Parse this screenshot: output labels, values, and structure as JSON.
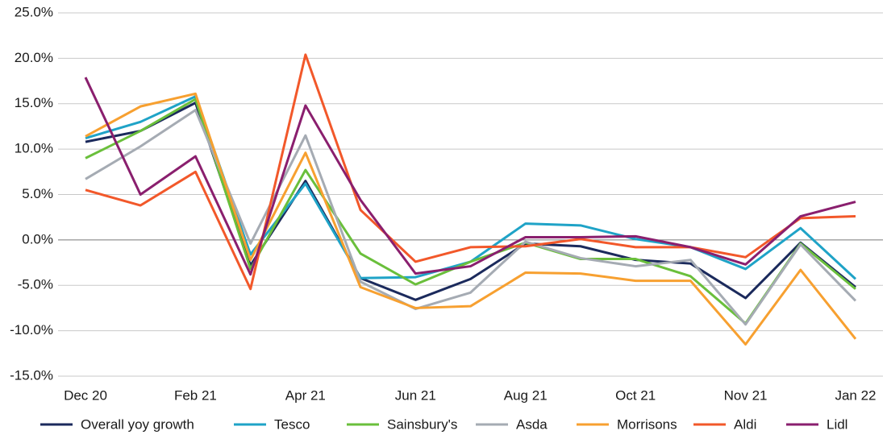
{
  "chart_data": {
    "type": "line",
    "categories": [
      "Dec 20",
      null,
      "Feb 21",
      null,
      "Apr 21",
      null,
      "Jun 21",
      null,
      "Aug 21",
      null,
      "Oct 21",
      null,
      "Nov 21",
      null,
      "Jan 22"
    ],
    "series": [
      {
        "name": "Overall yoy growth",
        "color": "#1b2a5c",
        "values": [
          10.8,
          12.0,
          15.1,
          -2.8,
          6.5,
          -4.2,
          -6.6,
          -4.3,
          -0.4,
          -0.7,
          -2.2,
          -2.6,
          -6.4,
          -0.3,
          -5.2
        ]
      },
      {
        "name": "Tesco",
        "color": "#1fa3c7",
        "values": [
          11.2,
          13.0,
          15.8,
          -1.6,
          6.2,
          -4.2,
          -4.1,
          -2.4,
          1.8,
          1.6,
          0.1,
          -0.8,
          -3.2,
          1.3,
          -4.3
        ]
      },
      {
        "name": "Sainsbury's",
        "color": "#6abf3b",
        "values": [
          9.0,
          12.0,
          15.5,
          -3.2,
          7.7,
          -1.5,
          -4.9,
          -2.4,
          -0.3,
          -2.1,
          -2.1,
          -4.0,
          -9.2,
          -0.4,
          -5.4
        ]
      },
      {
        "name": "Asda",
        "color": "#a5abb3",
        "values": [
          6.7,
          10.3,
          14.3,
          -0.4,
          11.5,
          -4.6,
          -7.6,
          -5.8,
          -0.2,
          -2.0,
          -2.9,
          -2.2,
          -9.3,
          -0.5,
          -6.7
        ]
      },
      {
        "name": "Morrisons",
        "color": "#f7a030",
        "values": [
          11.4,
          14.7,
          16.1,
          -2.2,
          9.6,
          -5.2,
          -7.5,
          -7.3,
          -3.6,
          -3.7,
          -4.5,
          -4.5,
          -11.5,
          -3.3,
          -10.9
        ]
      },
      {
        "name": "Aldi",
        "color": "#f2582a",
        "values": [
          5.5,
          3.8,
          7.5,
          -5.4,
          20.4,
          3.3,
          -2.4,
          -0.8,
          -0.7,
          0.1,
          -0.8,
          -0.8,
          -1.9,
          2.4,
          2.6
        ]
      },
      {
        "name": "Lidl",
        "color": "#8a1f6e",
        "values": [
          17.9,
          5.0,
          9.2,
          -3.8,
          14.8,
          4.4,
          -3.7,
          -2.9,
          0.3,
          0.3,
          0.4,
          -0.8,
          -2.7,
          2.6,
          4.2
        ]
      }
    ],
    "ylim": [
      -15,
      25
    ],
    "yticks": [
      {
        "value": -15,
        "label": "-15.0%"
      },
      {
        "value": -10,
        "label": "-10.0%"
      },
      {
        "value": -5,
        "label": "-5.0%"
      },
      {
        "value": 0,
        "label": "0.0%"
      },
      {
        "value": 5,
        "label": "5.0%"
      },
      {
        "value": 10,
        "label": "10.0%"
      },
      {
        "value": 15,
        "label": "15.0%"
      },
      {
        "value": 20,
        "label": "20.0%"
      },
      {
        "value": 25,
        "label": "25.0%"
      }
    ],
    "grid": true,
    "legend": "bottom"
  }
}
